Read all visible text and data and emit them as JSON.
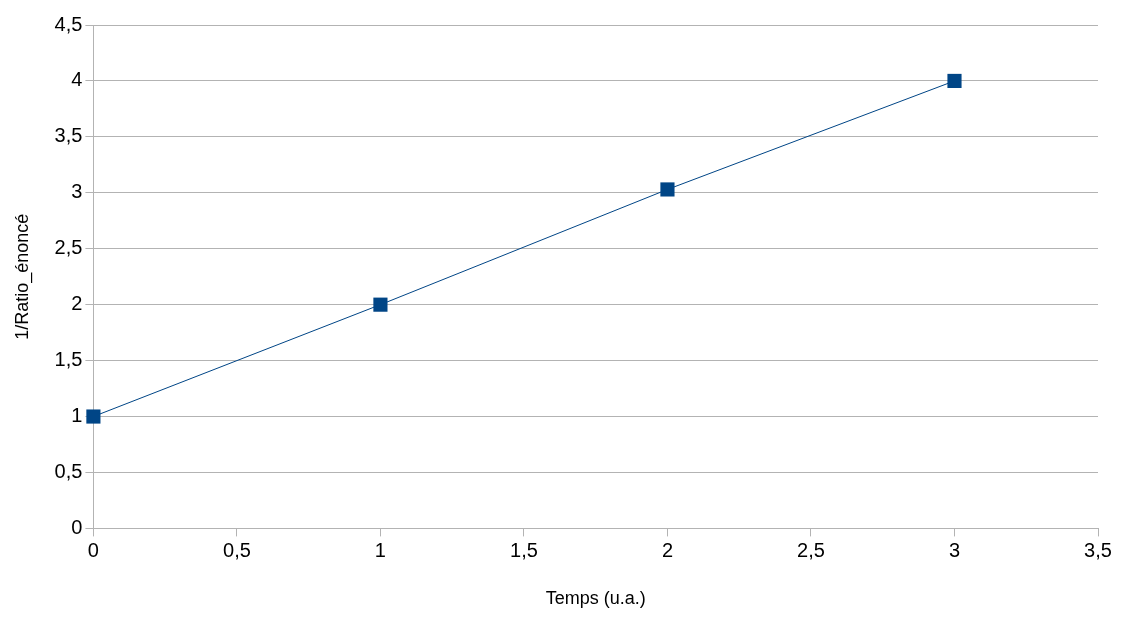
{
  "chart_data": {
    "type": "line",
    "xlabel": "Temps (u.a.)",
    "ylabel": "1/Ratio_énoncé",
    "x": [
      0,
      1,
      2,
      3
    ],
    "series": [
      {
        "color": "#004586",
        "values": [
          1,
          2,
          3.03,
          4
        ]
      }
    ],
    "marker": "square",
    "line_style": "solid",
    "grid": "y",
    "legend": false,
    "xlim": [
      0,
      3.5
    ],
    "xticks": [
      0,
      {
        "value": 0.5,
        "label": "0,5"
      },
      1,
      {
        "value": 1.5,
        "label": "1,5"
      },
      2,
      {
        "value": 2.5,
        "label": "2,5"
      },
      3,
      {
        "value": 3.5,
        "label": "3,5"
      }
    ],
    "ylim": [
      0,
      4.5
    ],
    "yticks": [
      0,
      {
        "value": 0.5,
        "label": "0,5"
      },
      1,
      {
        "value": 1.5,
        "label": "1,5"
      },
      2,
      {
        "value": 2.5,
        "label": "2,5"
      },
      3,
      {
        "value": 3.5,
        "label": "3,5"
      },
      4,
      {
        "value": 4.5,
        "label": "4,5"
      }
    ]
  }
}
